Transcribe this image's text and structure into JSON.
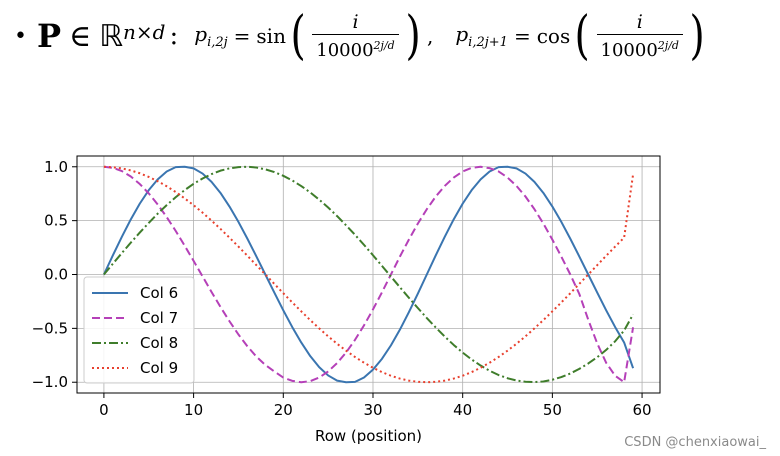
{
  "formula": {
    "bullet": "•",
    "matrix": "P",
    "in": "∈",
    "space": "ℝ",
    "dims": "n×d",
    "colon": ":",
    "lhs1": "p",
    "lhs1_sub": "i,2j",
    "eq": "=",
    "fn1": "sin",
    "numerator": "i",
    "denominator_base": "10000",
    "denominator_exp": "2j/d",
    "comma": ",",
    "lhs2": "p",
    "lhs2_sub": "i,2j+1",
    "fn2": "cos"
  },
  "watermark": "CSDN @chenxiaowai_",
  "colors": {
    "col6": "#3a75b0",
    "col7": "#b540b8",
    "col8": "#3f7d2b",
    "col9": "#e8402e",
    "grid": "#b0b0b0",
    "axis": "#000000"
  },
  "chart_data": {
    "type": "line",
    "xlabel": "Row (position)",
    "ylabel": "",
    "xlim": [
      -3,
      62
    ],
    "ylim": [
      -1.1,
      1.1
    ],
    "xticks": [
      0,
      10,
      20,
      30,
      40,
      50,
      60
    ],
    "xtick_labels": [
      "0",
      "10",
      "20",
      "30",
      "40",
      "50",
      "60"
    ],
    "yticks": [
      1.0,
      0.5,
      0.0,
      -0.5,
      -1.0
    ],
    "ytick_labels": [
      "1.0",
      "0.5",
      "0.0",
      "−0.5",
      "−1.0"
    ],
    "grid": true,
    "legend_position": "lower-left",
    "x": [
      0,
      1,
      2,
      3,
      4,
      5,
      6,
      7,
      8,
      9,
      10,
      11,
      12,
      13,
      14,
      15,
      16,
      17,
      18,
      19,
      20,
      21,
      22,
      23,
      24,
      25,
      26,
      27,
      28,
      29,
      30,
      31,
      32,
      33,
      34,
      35,
      36,
      37,
      38,
      39,
      40,
      41,
      42,
      43,
      44,
      45,
      46,
      47,
      48,
      49,
      50,
      51,
      52,
      53,
      54,
      55,
      56,
      57,
      58,
      59
    ],
    "series": [
      {
        "name": "Col 6",
        "style": "solid",
        "values": [
          0.0,
          0.178,
          0.35,
          0.512,
          0.658,
          0.783,
          0.883,
          0.956,
          0.997,
          1.0,
          0.985,
          0.937,
          0.86,
          0.757,
          0.631,
          0.488,
          0.332,
          0.168,
          0.0,
          -0.168,
          -0.332,
          -0.488,
          -0.631,
          -0.757,
          -0.86,
          -0.937,
          -0.985,
          -1.0,
          -0.997,
          -0.956,
          -0.883,
          -0.783,
          -0.658,
          -0.512,
          -0.35,
          -0.178,
          0.0,
          0.178,
          0.35,
          0.512,
          0.658,
          0.783,
          0.883,
          0.956,
          0.997,
          1.0,
          0.985,
          0.937,
          0.86,
          0.757,
          0.631,
          0.488,
          0.332,
          0.168,
          0.0,
          -0.168,
          -0.332,
          -0.488,
          -0.631,
          -0.87
        ]
      },
      {
        "name": "Col 7",
        "style": "dashed",
        "values": [
          1.0,
          0.99,
          0.96,
          0.91,
          0.84,
          0.753,
          0.65,
          0.533,
          0.405,
          0.268,
          0.126,
          -0.018,
          -0.162,
          -0.302,
          -0.434,
          -0.557,
          -0.667,
          -0.762,
          -0.84,
          -0.9,
          -0.957,
          -0.987,
          -1.0,
          -0.99,
          -0.957,
          -0.9,
          -0.822,
          -0.724,
          -0.606,
          -0.472,
          -0.324,
          -0.166,
          0.0,
          0.166,
          0.324,
          0.472,
          0.606,
          0.724,
          0.822,
          0.9,
          0.957,
          0.99,
          1.0,
          0.987,
          0.957,
          0.9,
          0.822,
          0.724,
          0.606,
          0.472,
          0.324,
          0.166,
          0.0,
          -0.18,
          -0.42,
          -0.64,
          -0.82,
          -0.94,
          -1.0,
          -0.49
        ]
      },
      {
        "name": "Col 8",
        "style": "dashdot",
        "values": [
          0.0,
          0.1,
          0.199,
          0.296,
          0.389,
          0.479,
          0.565,
          0.644,
          0.717,
          0.783,
          0.842,
          0.891,
          0.932,
          0.964,
          0.985,
          0.997,
          1.0,
          0.993,
          0.976,
          0.951,
          0.916,
          0.873,
          0.821,
          0.762,
          0.695,
          0.622,
          0.542,
          0.457,
          0.368,
          0.275,
          0.179,
          0.08,
          -0.019,
          -0.118,
          -0.216,
          -0.311,
          -0.404,
          -0.492,
          -0.576,
          -0.654,
          -0.725,
          -0.789,
          -0.845,
          -0.893,
          -0.933,
          -0.963,
          -0.984,
          -0.996,
          -0.999,
          -0.993,
          -0.977,
          -0.952,
          -0.919,
          -0.876,
          -0.826,
          -0.768,
          -0.7,
          -0.62,
          -0.52,
          -0.37
        ]
      },
      {
        "name": "Col 9",
        "style": "dotted",
        "values": [
          1.0,
          0.996,
          0.985,
          0.966,
          0.94,
          0.906,
          0.866,
          0.819,
          0.766,
          0.707,
          0.643,
          0.574,
          0.5,
          0.423,
          0.342,
          0.259,
          0.174,
          0.087,
          0.0,
          -0.087,
          -0.174,
          -0.259,
          -0.342,
          -0.423,
          -0.5,
          -0.574,
          -0.643,
          -0.707,
          -0.766,
          -0.819,
          -0.866,
          -0.906,
          -0.94,
          -0.966,
          -0.985,
          -0.996,
          -1.0,
          -0.996,
          -0.985,
          -0.966,
          -0.94,
          -0.906,
          -0.866,
          -0.819,
          -0.766,
          -0.707,
          -0.643,
          -0.574,
          -0.5,
          -0.423,
          -0.342,
          -0.259,
          -0.174,
          -0.087,
          0.0,
          0.087,
          0.174,
          0.259,
          0.342,
          0.93
        ]
      }
    ]
  }
}
